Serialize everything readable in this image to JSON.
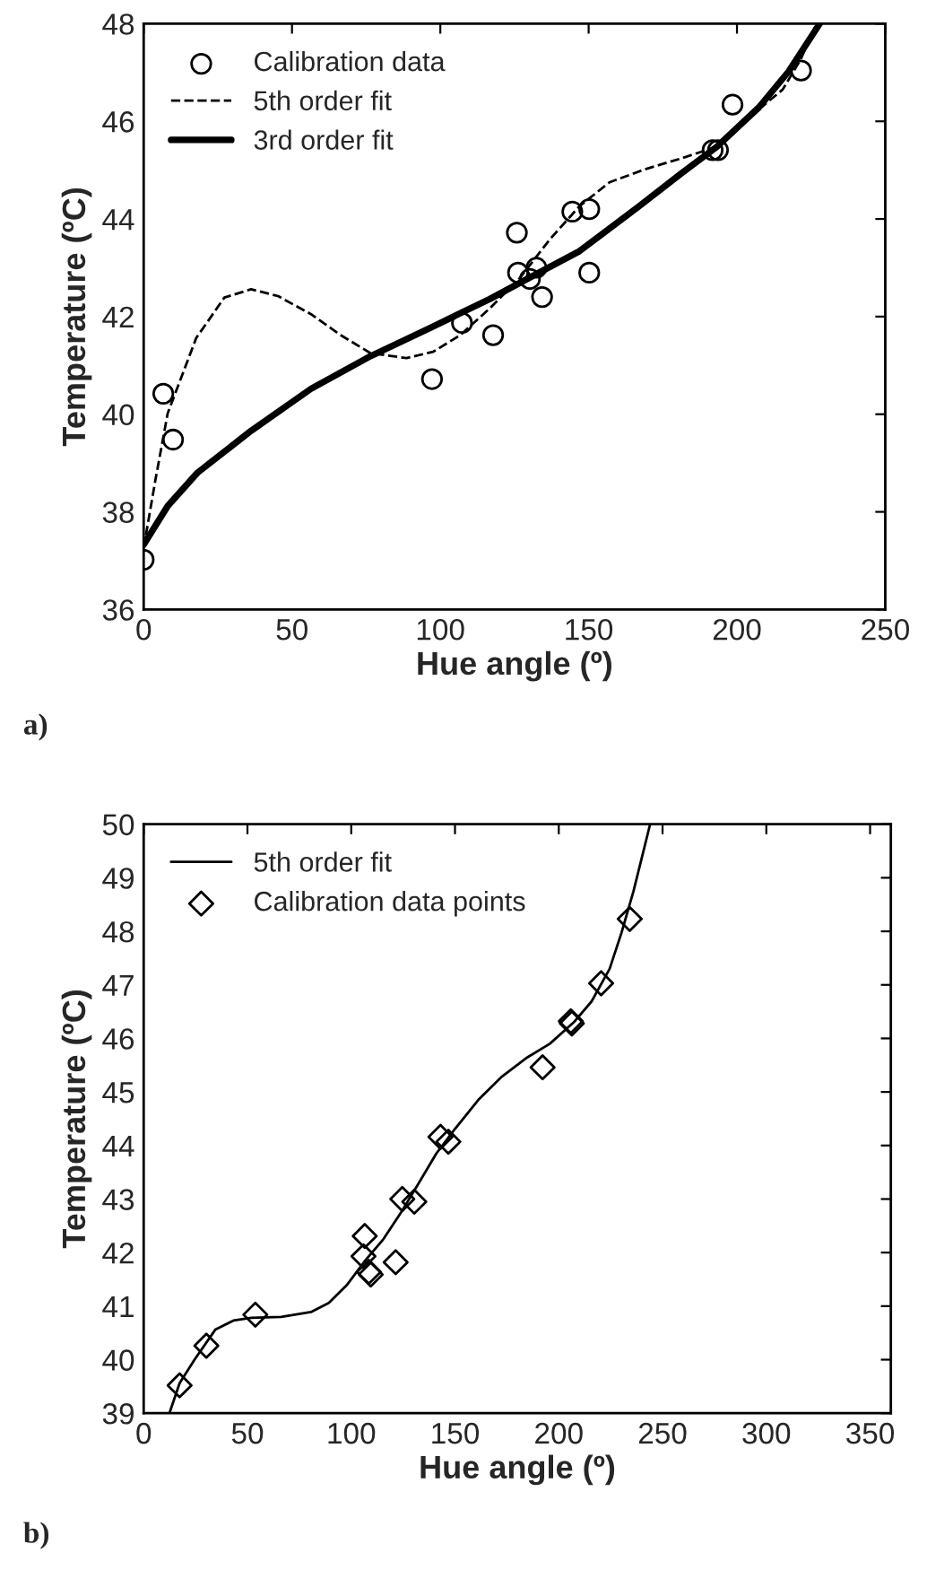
{
  "chart_data": [
    {
      "type": "scatter",
      "xlabel": "Hue angle (º)",
      "ylabel": "Temperature (ºC)",
      "xlim": [
        0,
        250
      ],
      "ylim": [
        36,
        48
      ],
      "xticks": [
        0,
        50,
        100,
        150,
        200,
        250
      ],
      "yticks": [
        36,
        38,
        40,
        42,
        44,
        46,
        48
      ],
      "grid": false,
      "legend": "top left",
      "annotations": [
        "a)"
      ],
      "series": [
        {
          "name": "Calibration data",
          "color": "#000000",
          "marker": "circle",
          "x": [
            0,
            6.6,
            9.9,
            97.2,
            107.3,
            117.8,
            125.8,
            126.2,
            130.2,
            132.4,
            134.3,
            144.5,
            150.2,
            150.2,
            191.8,
            193.6,
            198.5,
            221.6
          ],
          "values": [
            37.02,
            40.42,
            39.48,
            40.72,
            41.87,
            41.62,
            43.72,
            42.9,
            42.77,
            43.0,
            42.4,
            44.15,
            44.2,
            42.9,
            45.41,
            45.41,
            46.34,
            47.04
          ]
        },
        {
          "type": "line",
          "name": "5th order fit",
          "color": "#000000",
          "line_style": "dashed",
          "x": [
            0,
            4.0,
            8.1,
            17.7,
            27.2,
            36.2,
            45.3,
            56.4,
            66.4,
            76.5,
            88.6,
            97.6,
            106.7,
            116.7,
            126.8,
            136.9,
            146.9,
            157.0,
            169.1,
            181.2,
            193.2,
            203.3,
            215.4,
            221.4,
            226.4
          ],
          "values": [
            37.26,
            38.67,
            40.02,
            41.56,
            42.39,
            42.56,
            42.42,
            42.05,
            41.62,
            41.25,
            41.15,
            41.28,
            41.62,
            42.17,
            42.79,
            43.58,
            44.26,
            44.75,
            45.02,
            45.24,
            45.48,
            46.04,
            46.65,
            47.26,
            47.94
          ]
        },
        {
          "type": "line",
          "name": "3rd order fit",
          "color": "#000000",
          "line_style": "solid",
          "x": [
            0,
            8.1,
            18.1,
            36.2,
            56.4,
            76.5,
            96.6,
            116.7,
            130.8,
            146.9,
            167.0,
            181.2,
            193.2,
            207.3,
            217.4,
            227.9
          ],
          "values": [
            37.33,
            38.12,
            38.8,
            39.66,
            40.52,
            41.19,
            41.77,
            42.36,
            42.82,
            43.34,
            44.26,
            44.93,
            45.48,
            46.28,
            47.02,
            48.0
          ]
        }
      ]
    },
    {
      "type": "scatter",
      "xlabel": "Hue angle (º)",
      "ylabel": "Temperature (ºC)",
      "xlim": [
        0,
        360
      ],
      "ylim": [
        39,
        50
      ],
      "xticks": [
        0,
        50,
        100,
        150,
        200,
        250,
        300,
        350
      ],
      "yticks": [
        39,
        40,
        41,
        42,
        43,
        44,
        45,
        46,
        47,
        48,
        49,
        50
      ],
      "grid": false,
      "legend": "top left",
      "annotations": [
        "b)"
      ],
      "series": [
        {
          "type": "line",
          "name": "5th order fit",
          "color": "#000000",
          "line_style": "solid",
          "x": [
            12.4,
            17.3,
            24.5,
            34.5,
            43.2,
            51.8,
            66.2,
            80.6,
            89.2,
            97.8,
            106.5,
            115.1,
            123.7,
            132.4,
            141.0,
            149.6,
            161.2,
            172.7,
            184.2,
            195.7,
            207.2,
            215.8,
            224.5,
            230.2,
            236.0,
            240.3,
            244.0
          ],
          "values": [
            39.0,
            39.56,
            40.0,
            40.56,
            40.73,
            40.78,
            40.8,
            40.89,
            41.06,
            41.39,
            41.84,
            42.23,
            42.73,
            43.29,
            43.85,
            44.29,
            44.85,
            45.29,
            45.63,
            45.9,
            46.3,
            46.69,
            47.3,
            47.97,
            48.75,
            49.42,
            50.0
          ]
        },
        {
          "name": "Calibration data points",
          "color": "#000000",
          "marker": "diamond",
          "x": [
            17.3,
            30.2,
            53.8,
            106.5,
            105.9,
            109.4,
            108.5,
            121.4,
            124.6,
            130.4,
            143.0,
            146.8,
            192.2,
            205.8,
            206.3,
            220.4,
            234.2
          ],
          "values": [
            39.52,
            40.26,
            40.84,
            42.31,
            41.93,
            41.59,
            41.64,
            41.82,
            43.0,
            42.95,
            44.16,
            44.07,
            45.46,
            46.32,
            46.28,
            47.03,
            48.23
          ]
        }
      ]
    }
  ]
}
